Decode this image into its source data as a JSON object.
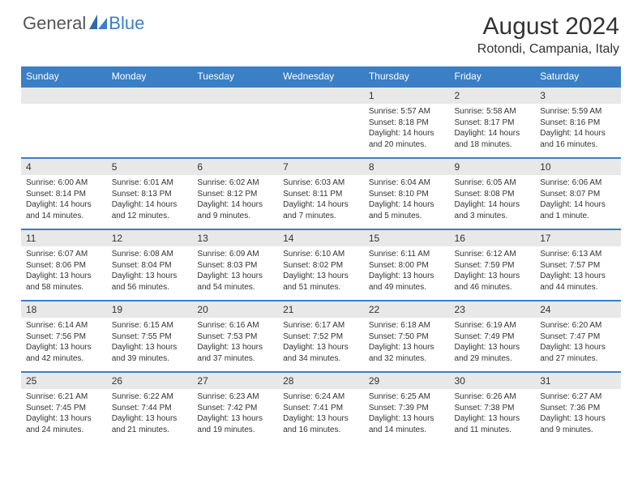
{
  "brand": {
    "word1": "General",
    "word2": "Blue",
    "text_color1": "#555555",
    "text_color2": "#3b7fc4"
  },
  "title": "August 2024",
  "location": "Rotondi, Campania, Italy",
  "colors": {
    "header_bg": "#3b7fc4",
    "header_text": "#ffffff",
    "daynum_bg": "#e8e8e8",
    "border": "#3b7fc4",
    "body_text": "#333333",
    "page_bg": "#ffffff"
  },
  "day_headers": [
    "Sunday",
    "Monday",
    "Tuesday",
    "Wednesday",
    "Thursday",
    "Friday",
    "Saturday"
  ],
  "font": {
    "title_size": 30,
    "location_size": 16,
    "header_size": 12,
    "daynum_size": 12,
    "content_size": 10
  },
  "weeks": [
    [
      {
        "day": "",
        "sunrise": "",
        "sunset": "",
        "daylight": ""
      },
      {
        "day": "",
        "sunrise": "",
        "sunset": "",
        "daylight": ""
      },
      {
        "day": "",
        "sunrise": "",
        "sunset": "",
        "daylight": ""
      },
      {
        "day": "",
        "sunrise": "",
        "sunset": "",
        "daylight": ""
      },
      {
        "day": "1",
        "sunrise": "Sunrise: 5:57 AM",
        "sunset": "Sunset: 8:18 PM",
        "daylight": "Daylight: 14 hours and 20 minutes."
      },
      {
        "day": "2",
        "sunrise": "Sunrise: 5:58 AM",
        "sunset": "Sunset: 8:17 PM",
        "daylight": "Daylight: 14 hours and 18 minutes."
      },
      {
        "day": "3",
        "sunrise": "Sunrise: 5:59 AM",
        "sunset": "Sunset: 8:16 PM",
        "daylight": "Daylight: 14 hours and 16 minutes."
      }
    ],
    [
      {
        "day": "4",
        "sunrise": "Sunrise: 6:00 AM",
        "sunset": "Sunset: 8:14 PM",
        "daylight": "Daylight: 14 hours and 14 minutes."
      },
      {
        "day": "5",
        "sunrise": "Sunrise: 6:01 AM",
        "sunset": "Sunset: 8:13 PM",
        "daylight": "Daylight: 14 hours and 12 minutes."
      },
      {
        "day": "6",
        "sunrise": "Sunrise: 6:02 AM",
        "sunset": "Sunset: 8:12 PM",
        "daylight": "Daylight: 14 hours and 9 minutes."
      },
      {
        "day": "7",
        "sunrise": "Sunrise: 6:03 AM",
        "sunset": "Sunset: 8:11 PM",
        "daylight": "Daylight: 14 hours and 7 minutes."
      },
      {
        "day": "8",
        "sunrise": "Sunrise: 6:04 AM",
        "sunset": "Sunset: 8:10 PM",
        "daylight": "Daylight: 14 hours and 5 minutes."
      },
      {
        "day": "9",
        "sunrise": "Sunrise: 6:05 AM",
        "sunset": "Sunset: 8:08 PM",
        "daylight": "Daylight: 14 hours and 3 minutes."
      },
      {
        "day": "10",
        "sunrise": "Sunrise: 6:06 AM",
        "sunset": "Sunset: 8:07 PM",
        "daylight": "Daylight: 14 hours and 1 minute."
      }
    ],
    [
      {
        "day": "11",
        "sunrise": "Sunrise: 6:07 AM",
        "sunset": "Sunset: 8:06 PM",
        "daylight": "Daylight: 13 hours and 58 minutes."
      },
      {
        "day": "12",
        "sunrise": "Sunrise: 6:08 AM",
        "sunset": "Sunset: 8:04 PM",
        "daylight": "Daylight: 13 hours and 56 minutes."
      },
      {
        "day": "13",
        "sunrise": "Sunrise: 6:09 AM",
        "sunset": "Sunset: 8:03 PM",
        "daylight": "Daylight: 13 hours and 54 minutes."
      },
      {
        "day": "14",
        "sunrise": "Sunrise: 6:10 AM",
        "sunset": "Sunset: 8:02 PM",
        "daylight": "Daylight: 13 hours and 51 minutes."
      },
      {
        "day": "15",
        "sunrise": "Sunrise: 6:11 AM",
        "sunset": "Sunset: 8:00 PM",
        "daylight": "Daylight: 13 hours and 49 minutes."
      },
      {
        "day": "16",
        "sunrise": "Sunrise: 6:12 AM",
        "sunset": "Sunset: 7:59 PM",
        "daylight": "Daylight: 13 hours and 46 minutes."
      },
      {
        "day": "17",
        "sunrise": "Sunrise: 6:13 AM",
        "sunset": "Sunset: 7:57 PM",
        "daylight": "Daylight: 13 hours and 44 minutes."
      }
    ],
    [
      {
        "day": "18",
        "sunrise": "Sunrise: 6:14 AM",
        "sunset": "Sunset: 7:56 PM",
        "daylight": "Daylight: 13 hours and 42 minutes."
      },
      {
        "day": "19",
        "sunrise": "Sunrise: 6:15 AM",
        "sunset": "Sunset: 7:55 PM",
        "daylight": "Daylight: 13 hours and 39 minutes."
      },
      {
        "day": "20",
        "sunrise": "Sunrise: 6:16 AM",
        "sunset": "Sunset: 7:53 PM",
        "daylight": "Daylight: 13 hours and 37 minutes."
      },
      {
        "day": "21",
        "sunrise": "Sunrise: 6:17 AM",
        "sunset": "Sunset: 7:52 PM",
        "daylight": "Daylight: 13 hours and 34 minutes."
      },
      {
        "day": "22",
        "sunrise": "Sunrise: 6:18 AM",
        "sunset": "Sunset: 7:50 PM",
        "daylight": "Daylight: 13 hours and 32 minutes."
      },
      {
        "day": "23",
        "sunrise": "Sunrise: 6:19 AM",
        "sunset": "Sunset: 7:49 PM",
        "daylight": "Daylight: 13 hours and 29 minutes."
      },
      {
        "day": "24",
        "sunrise": "Sunrise: 6:20 AM",
        "sunset": "Sunset: 7:47 PM",
        "daylight": "Daylight: 13 hours and 27 minutes."
      }
    ],
    [
      {
        "day": "25",
        "sunrise": "Sunrise: 6:21 AM",
        "sunset": "Sunset: 7:45 PM",
        "daylight": "Daylight: 13 hours and 24 minutes."
      },
      {
        "day": "26",
        "sunrise": "Sunrise: 6:22 AM",
        "sunset": "Sunset: 7:44 PM",
        "daylight": "Daylight: 13 hours and 21 minutes."
      },
      {
        "day": "27",
        "sunrise": "Sunrise: 6:23 AM",
        "sunset": "Sunset: 7:42 PM",
        "daylight": "Daylight: 13 hours and 19 minutes."
      },
      {
        "day": "28",
        "sunrise": "Sunrise: 6:24 AM",
        "sunset": "Sunset: 7:41 PM",
        "daylight": "Daylight: 13 hours and 16 minutes."
      },
      {
        "day": "29",
        "sunrise": "Sunrise: 6:25 AM",
        "sunset": "Sunset: 7:39 PM",
        "daylight": "Daylight: 13 hours and 14 minutes."
      },
      {
        "day": "30",
        "sunrise": "Sunrise: 6:26 AM",
        "sunset": "Sunset: 7:38 PM",
        "daylight": "Daylight: 13 hours and 11 minutes."
      },
      {
        "day": "31",
        "sunrise": "Sunrise: 6:27 AM",
        "sunset": "Sunset: 7:36 PM",
        "daylight": "Daylight: 13 hours and 9 minutes."
      }
    ]
  ]
}
